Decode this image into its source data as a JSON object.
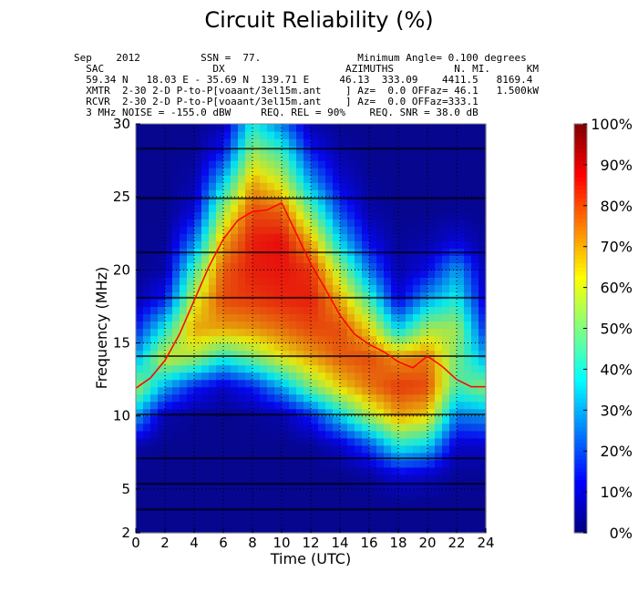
{
  "title": "Circuit Reliability (%)",
  "header_lines": [
    "Sep    2012          SSN =  77.                Minimum Angle= 0.100 degrees",
    "  SAC                  DX                    AZIMUTHS          N. MI.      KM",
    "  59.34 N   18.03 E - 35.69 N  139.71 E     46.13  333.09    4411.5   8169.4",
    "  XMTR  2-30 2-D P-to-P[voaant/3el15m.ant    ] Az=  0.0 OFFaz= 46.1   1.500kW",
    "  RCVR  2-30 2-D P-to-P[voaant/3el15m.ant    ] Az=  0.0 OFFaz=333.1",
    "  3 MHz NOISE = -155.0 dBW     REQ. REL = 90%    REQ. SNR = 38.0 dB"
  ],
  "chart_data": {
    "type": "heatmap",
    "title": "Circuit Reliability (%)",
    "xlabel": "Time (UTC)",
    "ylabel": "Frequency (MHz)",
    "xlim": [
      0,
      24
    ],
    "ylim": [
      2,
      30
    ],
    "x_ticks": [
      "0",
      "2",
      "4",
      "6",
      "8",
      "10",
      "12",
      "14",
      "16",
      "18",
      "20",
      "22",
      "24"
    ],
    "y_ticks": [
      "2",
      "5",
      "10",
      "15",
      "20",
      "25",
      "30"
    ],
    "colorbar": {
      "min": 0,
      "max": 100,
      "colormap": "jet",
      "ticks": [
        "0%",
        "10%",
        "20%",
        "30%",
        "40%",
        "50%",
        "60%",
        "70%",
        "80%",
        "90%",
        "100%"
      ]
    },
    "grid": true,
    "hours": [
      0,
      2,
      4,
      6,
      8,
      10,
      12,
      14,
      16,
      18,
      20,
      22,
      24
    ],
    "frequencies_mhz": [
      2,
      4,
      6,
      8,
      10,
      12,
      14,
      16,
      18,
      20,
      22,
      24,
      26,
      28,
      30
    ],
    "reliability_pct": [
      [
        2,
        2,
        2,
        2,
        2,
        2,
        2,
        2,
        2,
        2,
        2,
        2,
        2
      ],
      [
        2,
        2,
        2,
        2,
        2,
        2,
        2,
        2,
        2,
        2,
        2,
        2,
        2
      ],
      [
        2,
        2,
        2,
        2,
        2,
        2,
        2,
        2,
        4,
        10,
        8,
        3,
        3
      ],
      [
        5,
        2,
        2,
        2,
        2,
        2,
        3,
        8,
        20,
        40,
        35,
        8,
        8
      ],
      [
        30,
        5,
        3,
        2,
        3,
        5,
        15,
        35,
        55,
        70,
        65,
        25,
        28
      ],
      [
        55,
        30,
        15,
        8,
        15,
        30,
        50,
        65,
        75,
        82,
        80,
        45,
        52
      ],
      [
        30,
        60,
        55,
        40,
        50,
        62,
        70,
        78,
        80,
        72,
        75,
        50,
        30
      ],
      [
        15,
        40,
        70,
        70,
        72,
        76,
        80,
        80,
        65,
        35,
        55,
        55,
        15
      ],
      [
        5,
        15,
        60,
        80,
        82,
        84,
        85,
        70,
        45,
        10,
        30,
        40,
        8
      ],
      [
        2,
        5,
        45,
        78,
        85,
        86,
        83,
        55,
        25,
        5,
        12,
        30,
        5
      ],
      [
        2,
        3,
        25,
        70,
        85,
        87,
        70,
        35,
        12,
        3,
        5,
        10,
        3
      ],
      [
        2,
        2,
        10,
        55,
        80,
        78,
        50,
        20,
        5,
        2,
        2,
        3,
        2
      ],
      [
        2,
        2,
        5,
        35,
        70,
        60,
        30,
        10,
        3,
        2,
        2,
        2,
        2
      ],
      [
        2,
        2,
        3,
        15,
        55,
        45,
        15,
        5,
        2,
        2,
        2,
        2,
        2
      ],
      [
        2,
        2,
        2,
        5,
        40,
        25,
        5,
        2,
        2,
        2,
        2,
        2,
        2
      ]
    ],
    "red_line": {
      "hours": [
        0,
        1,
        2,
        3,
        4,
        5,
        6,
        7,
        8,
        9,
        10,
        11,
        12,
        13,
        14,
        15,
        16,
        17,
        18,
        19,
        20,
        21,
        22,
        23,
        24
      ],
      "frequency_mhz": [
        11.9,
        12.6,
        13.8,
        15.6,
        17.9,
        20.2,
        22.1,
        23.4,
        24.0,
        24.1,
        24.6,
        22.5,
        20.4,
        18.7,
        16.9,
        15.6,
        14.9,
        14.4,
        13.7,
        13.3,
        14.1,
        13.4,
        12.5,
        12.0,
        12.0
      ],
      "color": "#ff0000"
    },
    "band_lines_mhz": [
      3.6,
      5.35,
      7.1,
      10.1,
      14.1,
      18.1,
      21.2,
      24.9,
      28.3
    ]
  }
}
